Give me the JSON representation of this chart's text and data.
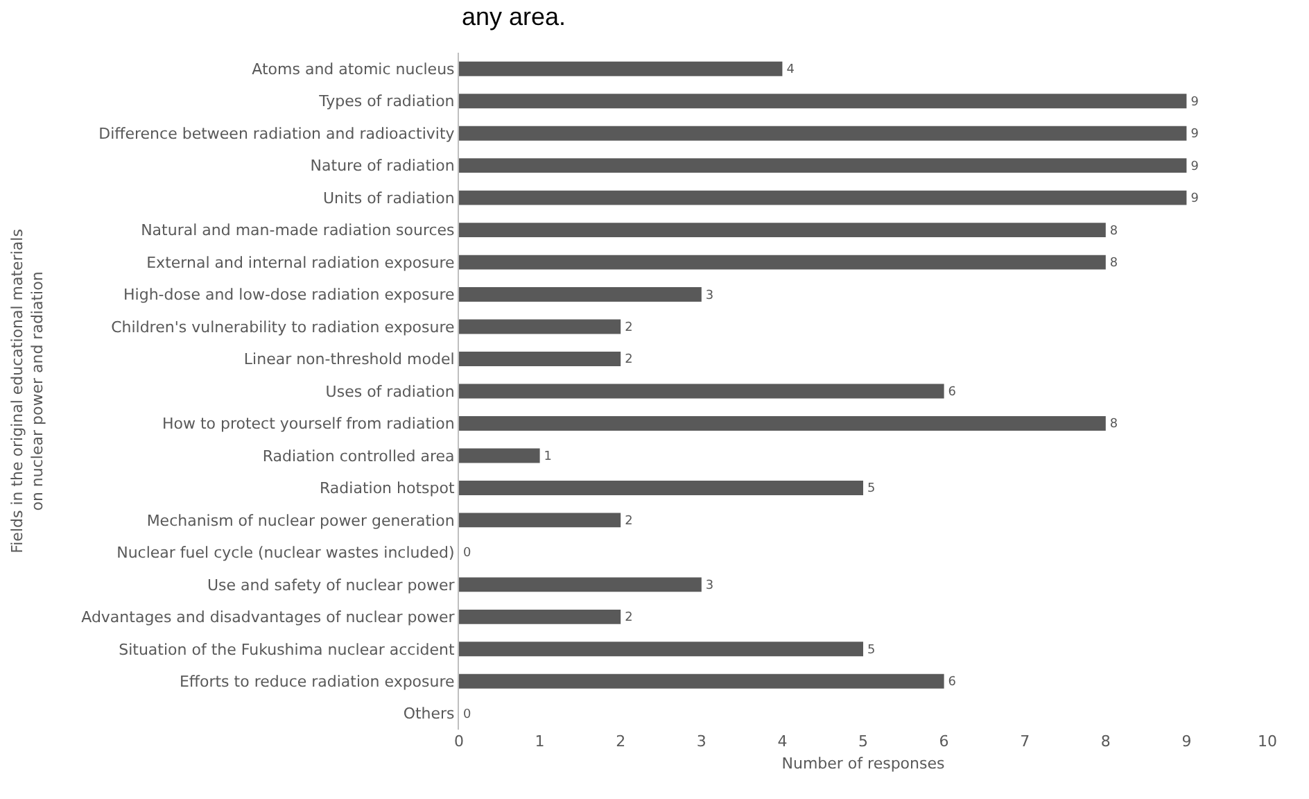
{
  "chart_data": {
    "type": "bar",
    "orientation": "horizontal",
    "categories": [
      "Atoms and atomic nucleus",
      "Types of radiation",
      "Difference between radiation and radioactivity",
      "Nature of radiation",
      "Units of radiation",
      "Natural and man-made radiation sources",
      "External and internal radiation exposure",
      "High-dose and low-dose radiation exposure",
      "Children's vulnerability to radiation exposure",
      "Linear non-threshold model",
      "Uses of radiation",
      "How to protect yourself from radiation",
      "Radiation controlled area",
      "Radiation hotspot",
      "Mechanism of nuclear power generation",
      "Nuclear fuel cycle (nuclear wastes included)",
      "Use and safety of nuclear power",
      "Advantages and disadvantages of nuclear power",
      "Situation of the Fukushima nuclear accident",
      "Efforts to reduce radiation exposure",
      "Others"
    ],
    "values": [
      4,
      9,
      9,
      9,
      9,
      8,
      8,
      3,
      2,
      2,
      6,
      8,
      1,
      5,
      2,
      0,
      3,
      2,
      5,
      6,
      0
    ],
    "color": "#595959",
    "xlim": [
      0,
      10
    ],
    "xticks": [
      0,
      1,
      2,
      3,
      4,
      5,
      6,
      7,
      8,
      9,
      10
    ],
    "xlabel": "Number of responses",
    "ylabel": "Fields in the original educational materials\non nuclear power and radiation",
    "annotations": [
      "any area."
    ],
    "data_labels": true,
    "legend": false
  }
}
